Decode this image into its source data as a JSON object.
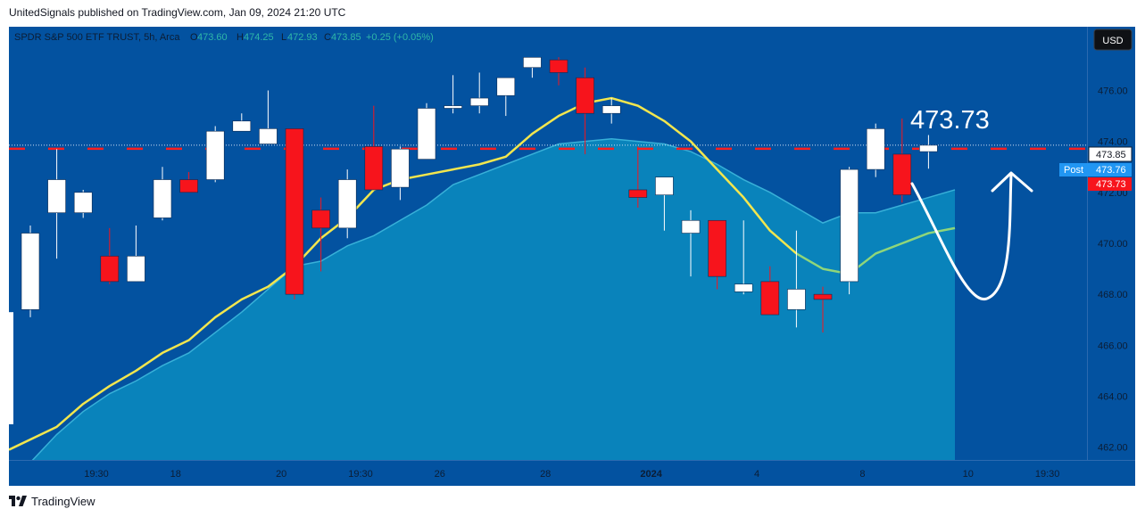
{
  "header": {
    "publisher_text": "UnitedSignals published on TradingView.com, Jan 09, 2024 21:20 UTC"
  },
  "legend": {
    "symbol": "SPDR S&P 500 ETF TRUST, 5h, Arca",
    "o_label": "O",
    "o_value": "473.60",
    "h_label": "H",
    "h_value": "474.25",
    "l_label": "L",
    "l_value": "472.93",
    "c_label": "C",
    "c_value": "473.85",
    "change": "+0.25 (+0.05%)"
  },
  "currency_button": "USD",
  "annotation": {
    "text": "473.73"
  },
  "price_labels": {
    "last": "473.85",
    "post_tag": "Post",
    "post": "473.76",
    "red": "473.73"
  },
  "footer": {
    "brand": "TradingView"
  },
  "colors": {
    "background": "#0352a0",
    "up_candle": "#ffffff",
    "down_candle": "#f7141c",
    "ema_line": "#f2e64e",
    "area_fill": "#0a8cc0",
    "dash_line": "#ff1f1f",
    "post_label": "#2196f3"
  },
  "chart_data": {
    "type": "candlestick",
    "yaxis": {
      "ticks": [
        462,
        464,
        466,
        468,
        470,
        472,
        474,
        476
      ],
      "labels": [
        "462.00",
        "464.00",
        "466.00",
        "468.00",
        "470.00",
        "472.00",
        "474.00",
        "476.00"
      ],
      "ylim": [
        461.5,
        478.5
      ]
    },
    "xaxis": {
      "tick_labels": [
        {
          "label": "19:30",
          "index": 2.5
        },
        {
          "label": "18",
          "index": 5.5
        },
        {
          "label": "20",
          "index": 9.5
        },
        {
          "label": "19:30",
          "index": 12.5
        },
        {
          "label": "26",
          "index": 15.5
        },
        {
          "label": "28",
          "index": 19.5
        },
        {
          "label": "2024",
          "index": 23.5,
          "bold": true
        },
        {
          "label": "4",
          "index": 27.5
        },
        {
          "label": "8",
          "index": 31.5
        },
        {
          "label": "10",
          "index": 35.5
        },
        {
          "label": "19:30",
          "index": 38.5
        }
      ]
    },
    "candles": [
      {
        "o": 467.4,
        "h": 470.7,
        "l": 467.1,
        "c": 470.4
      },
      {
        "o": 471.2,
        "h": 473.7,
        "l": 469.4,
        "c": 472.5
      },
      {
        "o": 471.2,
        "h": 472.1,
        "l": 471.0,
        "c": 472.0
      },
      {
        "o": 469.5,
        "h": 470.6,
        "l": 468.4,
        "c": 468.5
      },
      {
        "o": 468.5,
        "h": 470.7,
        "l": 468.5,
        "c": 469.5
      },
      {
        "o": 471.0,
        "h": 473.0,
        "l": 470.9,
        "c": 472.5
      },
      {
        "o": 472.5,
        "h": 472.8,
        "l": 472.0,
        "c": 472.0
      },
      {
        "o": 472.5,
        "h": 474.6,
        "l": 472.4,
        "c": 474.4
      },
      {
        "o": 474.4,
        "h": 475.1,
        "l": 474.4,
        "c": 474.8
      },
      {
        "o": 473.9,
        "h": 476.0,
        "l": 473.9,
        "c": 474.5
      },
      {
        "o": 474.5,
        "h": 474.5,
        "l": 467.8,
        "c": 468.0
      },
      {
        "o": 471.3,
        "h": 471.8,
        "l": 468.9,
        "c": 470.6
      },
      {
        "o": 470.6,
        "h": 472.9,
        "l": 470.2,
        "c": 472.5
      },
      {
        "o": 473.8,
        "h": 475.4,
        "l": 472.1,
        "c": 472.1
      },
      {
        "o": 472.2,
        "h": 473.8,
        "l": 471.7,
        "c": 473.7
      },
      {
        "o": 473.3,
        "h": 475.5,
        "l": 473.3,
        "c": 475.3
      },
      {
        "o": 475.3,
        "h": 476.6,
        "l": 475.1,
        "c": 475.4
      },
      {
        "o": 475.4,
        "h": 476.7,
        "l": 475.1,
        "c": 475.7
      },
      {
        "o": 475.8,
        "h": 476.5,
        "l": 475.0,
        "c": 476.5
      },
      {
        "o": 476.9,
        "h": 477.3,
        "l": 476.5,
        "c": 477.3
      },
      {
        "o": 477.2,
        "h": 477.3,
        "l": 476.2,
        "c": 476.7
      },
      {
        "o": 476.5,
        "h": 476.9,
        "l": 473.5,
        "c": 475.1
      },
      {
        "o": 475.1,
        "h": 475.7,
        "l": 474.7,
        "c": 475.4
      },
      {
        "o": 472.1,
        "h": 473.8,
        "l": 471.4,
        "c": 471.8
      },
      {
        "o": 471.9,
        "h": 472.6,
        "l": 470.5,
        "c": 472.6
      },
      {
        "o": 470.4,
        "h": 471.3,
        "l": 468.7,
        "c": 470.9
      },
      {
        "o": 470.9,
        "h": 470.9,
        "l": 468.2,
        "c": 468.7
      },
      {
        "o": 468.1,
        "h": 470.9,
        "l": 468.0,
        "c": 468.4
      },
      {
        "o": 468.5,
        "h": 469.1,
        "l": 467.2,
        "c": 467.2
      },
      {
        "o": 467.4,
        "h": 470.5,
        "l": 466.7,
        "c": 468.2
      },
      {
        "o": 468.0,
        "h": 468.3,
        "l": 466.5,
        "c": 467.8
      },
      {
        "o": 468.5,
        "h": 473.0,
        "l": 468.0,
        "c": 472.9
      },
      {
        "o": 472.9,
        "h": 474.7,
        "l": 472.6,
        "c": 474.5
      },
      {
        "o": 473.5,
        "h": 474.9,
        "l": 471.6,
        "c": 471.9
      },
      {
        "o": 473.6,
        "h": 474.25,
        "l": 472.93,
        "c": 473.85
      }
    ],
    "ema": [
      461.9,
      462.8,
      463.7,
      464.4,
      465.0,
      465.7,
      466.2,
      467.1,
      467.8,
      468.3,
      469.1,
      470.2,
      471.0,
      472.1,
      472.5,
      472.7,
      472.9,
      473.1,
      473.4,
      474.3,
      475.0,
      475.5,
      475.7,
      475.4,
      474.8,
      474.0,
      472.9,
      471.8,
      470.5,
      469.6,
      469.0,
      468.8,
      469.6,
      470.0,
      470.4,
      470.6
    ],
    "area_top": [
      461.4,
      462.5,
      463.4,
      464.1,
      464.6,
      465.2,
      465.7,
      466.5,
      467.3,
      468.2,
      469.1,
      469.3,
      469.9,
      470.3,
      470.9,
      471.5,
      472.3,
      472.7,
      473.1,
      473.5,
      473.9,
      474.0,
      474.1,
      474.0,
      473.9,
      473.6,
      473.1,
      472.5,
      472.0,
      471.4,
      470.8,
      471.2,
      471.2,
      471.5,
      471.8,
      472.1
    ],
    "last_price": 473.85,
    "post_price": 473.76,
    "dash_price": 473.73
  }
}
